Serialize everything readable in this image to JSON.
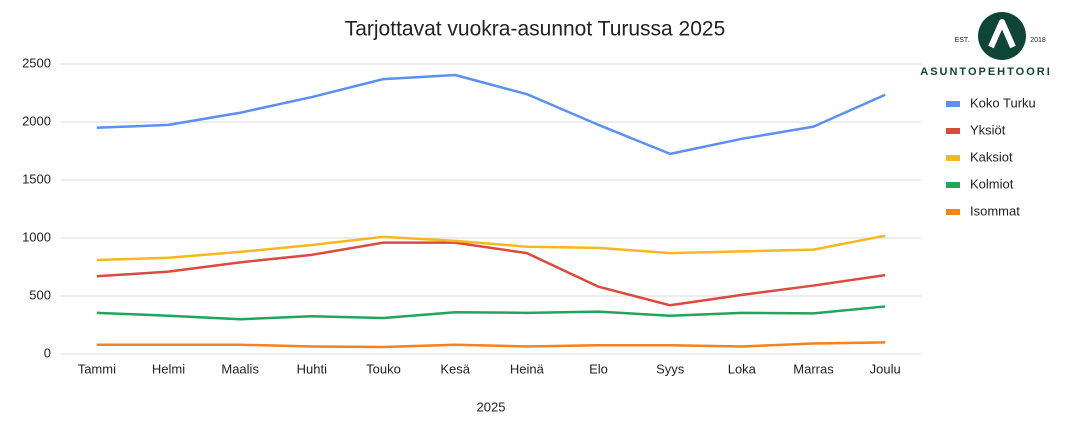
{
  "chart_data": {
    "type": "line",
    "title": "Tarjottavat vuokra-asunnot Turussa 2025",
    "x_label": "2025",
    "categories": [
      "Tammi",
      "Helmi",
      "Maalis",
      "Huhti",
      "Touko",
      "Kesä",
      "Heinä",
      "Elo",
      "Syys",
      "Loka",
      "Marras",
      "Joulu"
    ],
    "series": [
      {
        "name": "Koko Turku",
        "color": "#5b8ff0",
        "values": [
          1950,
          1975,
          2080,
          2215,
          2370,
          2405,
          2240,
          1975,
          1725,
          1855,
          1960,
          2235
        ]
      },
      {
        "name": "Yksiöt",
        "color": "#db4a3f",
        "values": [
          670,
          710,
          790,
          855,
          960,
          960,
          870,
          580,
          420,
          510,
          590,
          680
        ]
      },
      {
        "name": "Kaksiot",
        "color": "#f5b820",
        "values": [
          810,
          830,
          880,
          940,
          1010,
          975,
          925,
          915,
          870,
          885,
          900,
          1020
        ]
      },
      {
        "name": "Kolmiot",
        "color": "#22a55a",
        "values": [
          355,
          330,
          300,
          325,
          310,
          360,
          355,
          365,
          330,
          355,
          350,
          410
        ]
      },
      {
        "name": "Isommat",
        "color": "#f5811f",
        "values": [
          80,
          80,
          80,
          65,
          60,
          80,
          65,
          75,
          75,
          65,
          90,
          100
        ]
      }
    ],
    "ylim": [
      0,
      2500
    ],
    "yticks": [
      0,
      500,
      1000,
      1500,
      2000,
      2500
    ],
    "grid": true,
    "legend": "right"
  },
  "logo": {
    "est": "EST.",
    "year": "2018",
    "name": "ASUNTOPEHTOORI"
  }
}
